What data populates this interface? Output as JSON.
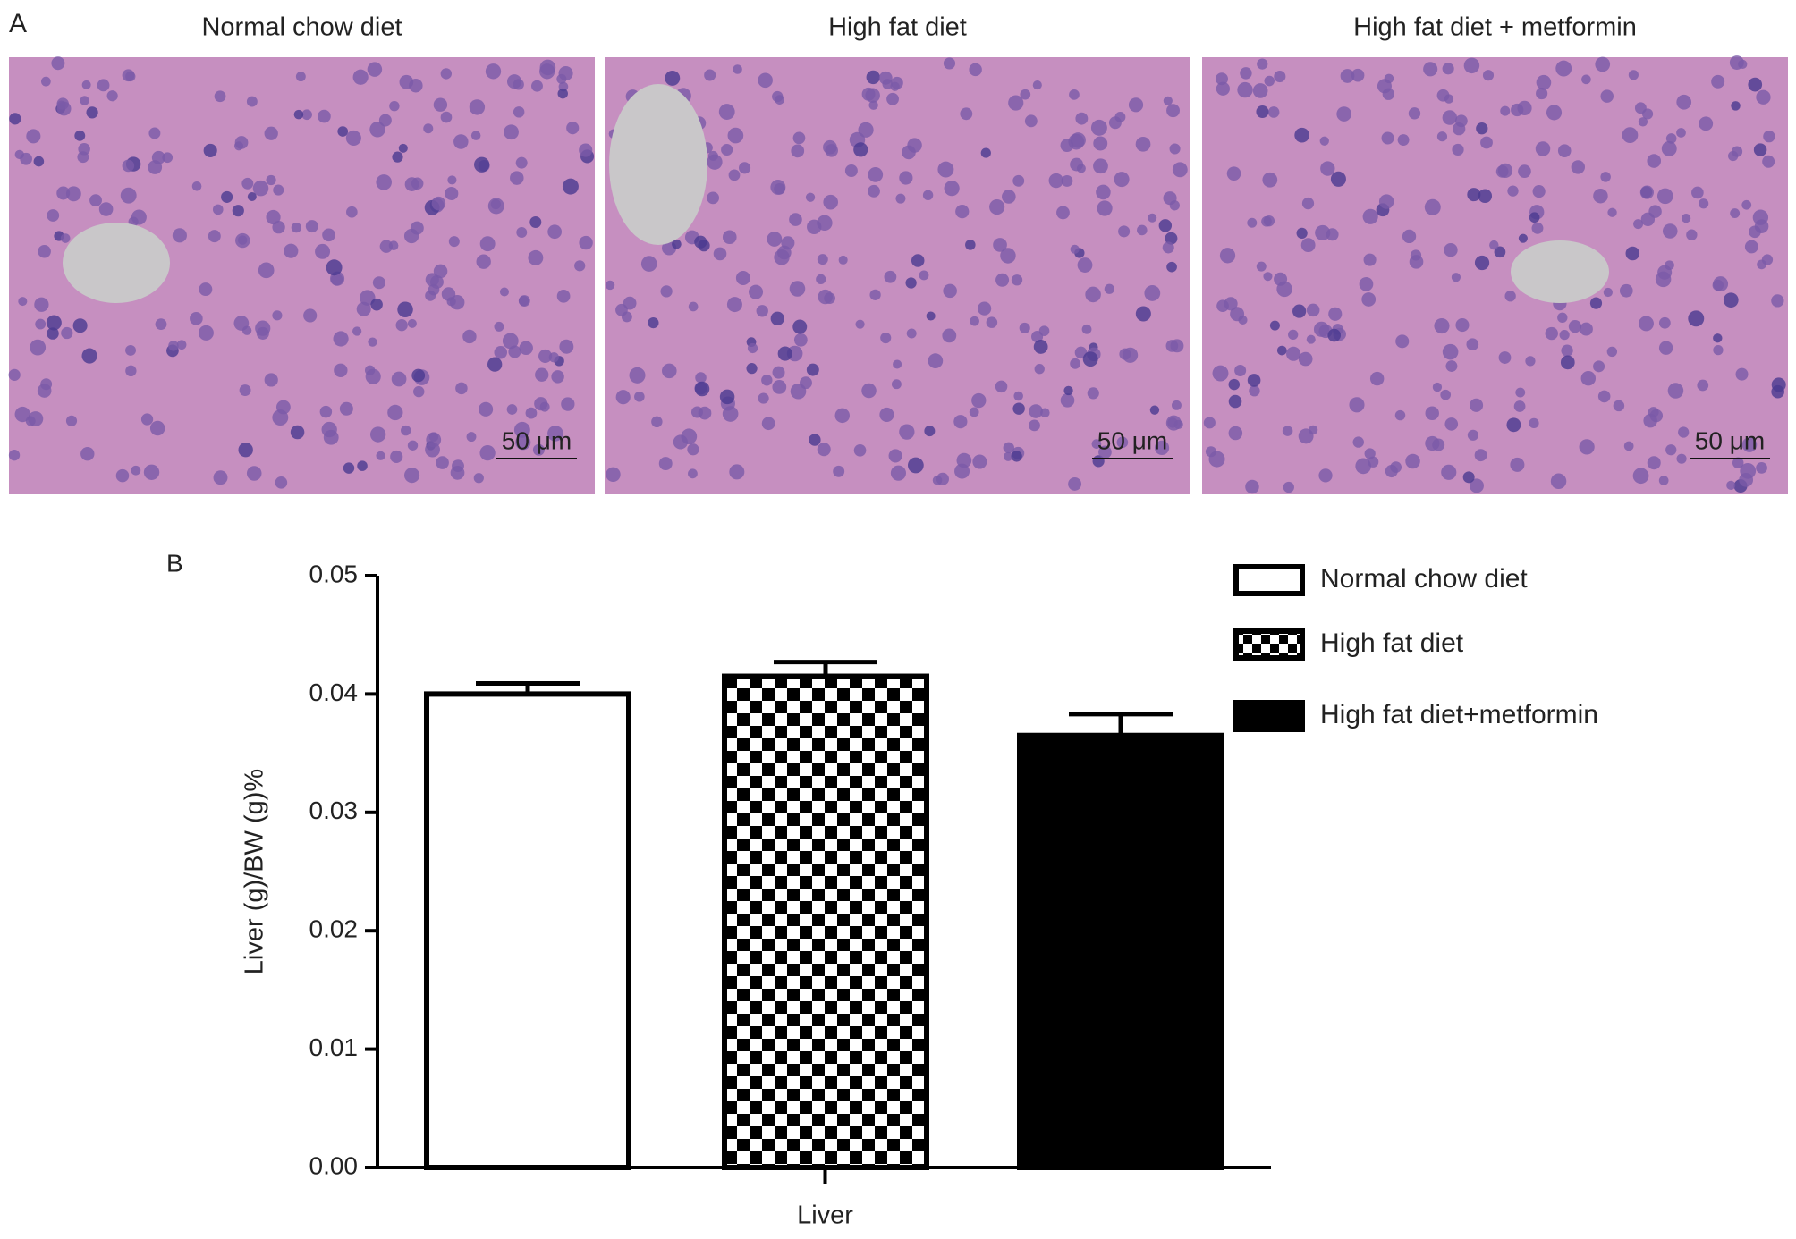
{
  "panel_a": {
    "label": "A",
    "images": [
      {
        "title": "Normal chow diet",
        "scale_bar": "50 μm"
      },
      {
        "title": "High fat diet",
        "scale_bar": "50 μm"
      },
      {
        "title": "High fat diet + metformin",
        "scale_bar": "50 μm"
      }
    ]
  },
  "chart_data": {
    "type": "bar",
    "panel_label": "B",
    "ylabel": "Liver (g)/BW (g)%",
    "categories": [
      "Liver"
    ],
    "series": [
      {
        "name": "Normal chow diet",
        "color": "#ffffff",
        "values": [
          0.04
        ],
        "errors": [
          0.0009
        ]
      },
      {
        "name": "High fat diet",
        "color": "#000000",
        "pattern": "checker",
        "values": [
          0.0415
        ],
        "errors": [
          0.0012
        ]
      },
      {
        "name": "High fat diet+metformin",
        "color": "#000000",
        "values": [
          0.0365
        ],
        "errors": [
          0.0018
        ]
      }
    ],
    "ylim": [
      0,
      0.05
    ],
    "yticks": [
      {
        "value": 0,
        "label": "0.00"
      },
      0.01,
      0.02,
      0.03,
      0.04,
      0.05
    ]
  }
}
